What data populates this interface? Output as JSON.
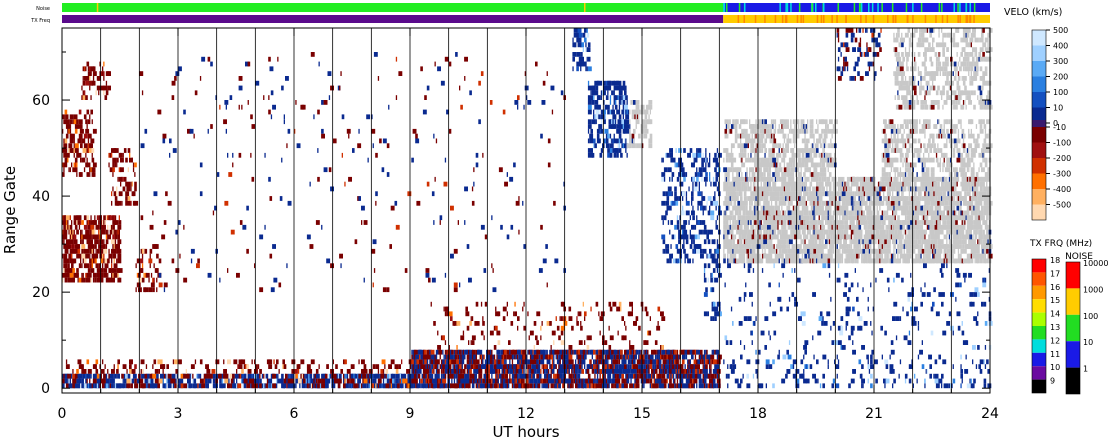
{
  "chart_data": {
    "type": "heatmap",
    "xlabel": "UT hours",
    "ylabel": "Range Gate",
    "xlim": [
      0,
      24
    ],
    "ylim": [
      -1,
      75
    ],
    "x_ticks": [
      0,
      3,
      6,
      9,
      12,
      15,
      18,
      21,
      24
    ],
    "y_ticks": [
      0,
      20,
      40,
      60
    ],
    "hour_lines": [
      1,
      2,
      3,
      4,
      5,
      6,
      7,
      8,
      9,
      10,
      11,
      12,
      13,
      14,
      15,
      16,
      17,
      18,
      19,
      20,
      21,
      22,
      23
    ],
    "top_bars": {
      "noise_label": "Noise",
      "txfreq_label": "TX Freq",
      "mode_change_hour": 17.1,
      "noise_before_color": "#22ee22",
      "noise_after_color": "#1a1ae6",
      "txfreq_before_color": "#5a0a8c",
      "txfreq_after_color": "#ffcc00"
    },
    "velocity_scale": {
      "title": "VELO (km/s)",
      "positive_labels": [
        "500",
        "400",
        "300",
        "200",
        "100",
        "10"
      ],
      "zero_label": "0",
      "negative_labels": [
        "-10",
        "-100",
        "-200",
        "-300",
        "-400",
        "-500"
      ],
      "positive_colors": [
        "#cfe8ff",
        "#9fd0ff",
        "#5aaaf5",
        "#2a7fe0",
        "#1450c0",
        "#0a2a90"
      ],
      "negative_colors": [
        "#7a0000",
        "#a01010",
        "#d03000",
        "#ff7000",
        "#ffb060",
        "#ffd8b0"
      ],
      "ground_scatter_color": "#c8c8c8"
    },
    "txfreq_scale": {
      "title": "TX FRQ (MHz)",
      "labels": [
        "18",
        "17",
        "16",
        "15",
        "14",
        "13",
        "12",
        "11",
        "10",
        "9"
      ],
      "colors": [
        "#ff0000",
        "#ff5500",
        "#ff9900",
        "#ffdd00",
        "#aaff00",
        "#22dd22",
        "#00dddd",
        "#1a1ae6",
        "#6a0aa0",
        "#000000"
      ]
    },
    "noise_scale": {
      "title": "NOISE",
      "labels": [
        "10000",
        "1000",
        "100",
        "10",
        "1"
      ],
      "colors": [
        "#ff0000",
        "#ffcc00",
        "#22dd22",
        "#1a1ae6",
        "#000000"
      ]
    },
    "regions": [
      {
        "x0": 0.0,
        "x1": 1.5,
        "y0": 22,
        "y1": 36,
        "kind": "neg",
        "density": 0.55
      },
      {
        "x0": 0.0,
        "x1": 0.8,
        "y0": 44,
        "y1": 58,
        "kind": "neg",
        "density": 0.35
      },
      {
        "x0": 0.5,
        "x1": 1.2,
        "y0": 60,
        "y1": 68,
        "kind": "neg",
        "density": 0.35
      },
      {
        "x0": 1.2,
        "x1": 1.9,
        "y0": 38,
        "y1": 50,
        "kind": "neg",
        "density": 0.3
      },
      {
        "x0": 1.9,
        "x1": 2.5,
        "y0": 20,
        "y1": 30,
        "kind": "neg",
        "density": 0.2
      },
      {
        "x0": 13.2,
        "x1": 13.6,
        "y0": 66,
        "y1": 75,
        "kind": "pos",
        "density": 0.35
      },
      {
        "x0": 13.6,
        "x1": 14.6,
        "y0": 48,
        "y1": 64,
        "kind": "pos",
        "density": 0.45
      },
      {
        "x0": 14.6,
        "x1": 15.2,
        "y0": 50,
        "y1": 60,
        "kind": "gs",
        "density": 0.3
      },
      {
        "x0": 15.5,
        "x1": 17.0,
        "y0": 26,
        "y1": 50,
        "kind": "pos",
        "density": 0.28
      },
      {
        "x0": 16.6,
        "x1": 17.0,
        "y0": 14,
        "y1": 26,
        "kind": "pos",
        "density": 0.25
      },
      {
        "x0": 17.1,
        "x1": 24.0,
        "y0": 26,
        "y1": 44,
        "kind": "gs",
        "density": 0.72
      },
      {
        "x0": 17.1,
        "x1": 20.0,
        "y0": 44,
        "y1": 56,
        "kind": "gs",
        "density": 0.45
      },
      {
        "x0": 21.2,
        "x1": 24.0,
        "y0": 44,
        "y1": 56,
        "kind": "gs",
        "density": 0.35
      },
      {
        "x0": 21.5,
        "x1": 24.0,
        "y0": 58,
        "y1": 75,
        "kind": "gs",
        "density": 0.35
      },
      {
        "x0": 20.0,
        "x1": 21.2,
        "y0": 64,
        "y1": 75,
        "kind": "mix",
        "density": 0.2
      },
      {
        "x0": 0.0,
        "x1": 9.0,
        "y0": 0,
        "y1": 3,
        "kind": "pos",
        "density": 0.55
      },
      {
        "x0": 0.0,
        "x1": 9.0,
        "y0": 0,
        "y1": 6,
        "kind": "neg",
        "density": 0.18
      },
      {
        "x0": 9.0,
        "x1": 17.0,
        "y0": 0,
        "y1": 8,
        "kind": "mix",
        "density": 0.72
      },
      {
        "x0": 9.5,
        "x1": 15.5,
        "y0": 8,
        "y1": 18,
        "kind": "neg",
        "density": 0.1
      },
      {
        "x0": 17.0,
        "x1": 24.0,
        "y0": 0,
        "y1": 6,
        "kind": "pos",
        "density": 0.12
      },
      {
        "x0": 2.0,
        "x1": 13.0,
        "y0": 20,
        "y1": 70,
        "kind": "mix",
        "density": 0.018
      },
      {
        "x0": 17.0,
        "x1": 24.0,
        "y0": 6,
        "y1": 26,
        "kind": "pos",
        "density": 0.06
      }
    ]
  }
}
